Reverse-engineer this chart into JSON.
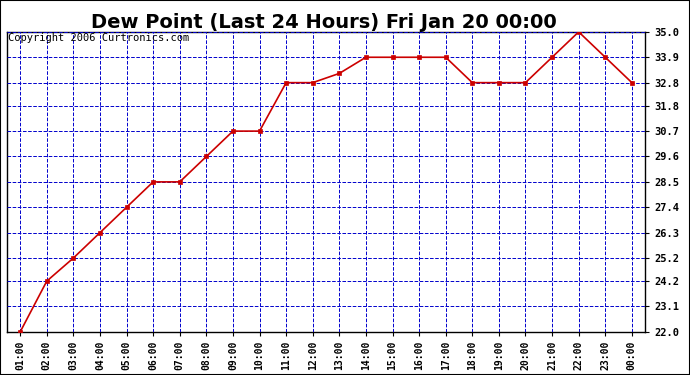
{
  "title": "Dew Point (Last 24 Hours) Fri Jan 20 00:00",
  "copyright": "Copyright 2006 Curtronics.com",
  "x_labels": [
    "01:00",
    "02:00",
    "03:00",
    "04:00",
    "05:00",
    "06:00",
    "07:00",
    "08:00",
    "09:00",
    "10:00",
    "11:00",
    "12:00",
    "13:00",
    "14:00",
    "15:00",
    "16:00",
    "17:00",
    "18:00",
    "19:00",
    "20:00",
    "21:00",
    "22:00",
    "23:00",
    "00:00"
  ],
  "y_values": [
    22.0,
    24.2,
    25.2,
    26.3,
    27.4,
    28.5,
    28.5,
    29.6,
    30.7,
    30.7,
    32.8,
    32.8,
    33.2,
    33.9,
    33.9,
    33.9,
    33.9,
    32.8,
    32.8,
    32.8,
    33.9,
    35.0,
    33.9,
    32.8
  ],
  "y_ticks": [
    22.0,
    23.1,
    24.2,
    25.2,
    26.3,
    27.4,
    28.5,
    29.6,
    30.7,
    31.8,
    32.8,
    33.9,
    35.0
  ],
  "y_min": 22.0,
  "y_max": 35.0,
  "line_color": "#cc0000",
  "marker_color": "#cc0000",
  "bg_color": "#ffffff",
  "plot_bg_color": "#ffffff",
  "grid_color": "#0000cc",
  "title_fontsize": 14,
  "copyright_fontsize": 7.5
}
